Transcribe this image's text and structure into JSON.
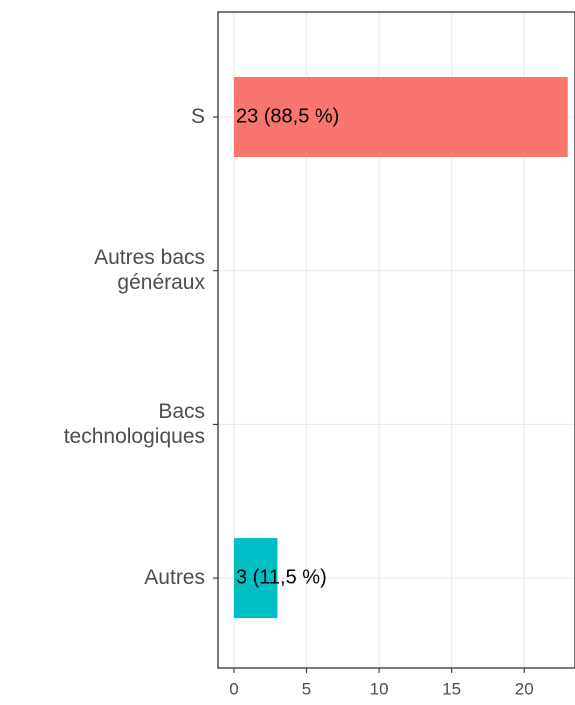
{
  "chart_data": {
    "type": "bar",
    "orientation": "horizontal",
    "categories": [
      "S",
      "Autres bacs\ngénéraux",
      "Bacs\ntechnologiques",
      "Autres"
    ],
    "values": [
      23,
      0,
      0,
      3
    ],
    "value_labels": [
      "23 (88,5 %)",
      null,
      null,
      "3 (11,5 %)"
    ],
    "colors": [
      "#F8766D",
      "#7CAE00",
      "#00BFC4",
      "#00BFC4"
    ],
    "xlim": [
      -1.1,
      23.5
    ],
    "xticks": [
      0,
      5,
      10,
      15,
      20
    ],
    "grid": true
  }
}
